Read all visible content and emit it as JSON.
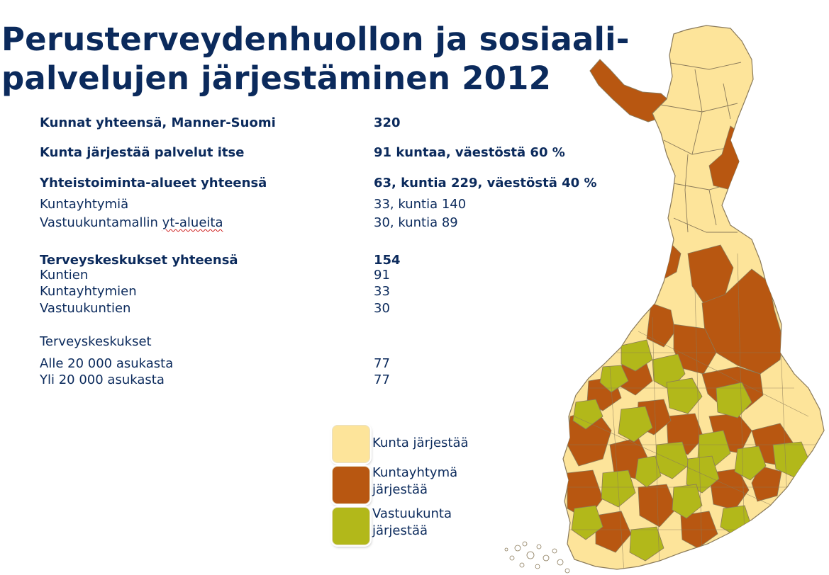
{
  "title": {
    "line1": "Perusterveydenhuollon ja sosiaali-",
    "line2": "palvelujen järjestäminen 2012"
  },
  "stats": [
    {
      "label": "Kunnat yhteensä, Manner-Suomi",
      "value": "320",
      "bold": true
    },
    {
      "label": "Kunta järjestää palvelut itse",
      "value": "91 kuntaa, väestöstä 60 %",
      "bold": true
    },
    {
      "label": "Yhteistoiminta-alueet yhteensä",
      "value": "63, kuntia 229, väestöstä 40 %",
      "bold": true
    },
    {
      "label": "Kuntayhtymiä",
      "value": "33, kuntia 140",
      "bold": false
    },
    {
      "label_pre": "Vastuukuntamallin ",
      "label_squiggle": "yt-alueita",
      "value": "30, kuntia 89",
      "bold": false
    },
    {
      "label": "Terveyskeskukset yhteensä",
      "value": "154",
      "bold": true
    },
    {
      "label": "Kuntien",
      "value": "91",
      "bold": false
    },
    {
      "label": "Kuntayhtymien",
      "value": "33",
      "bold": false
    },
    {
      "label": "Vastuukuntien",
      "value": "30",
      "bold": false
    },
    {
      "label": "Terveyskeskukset",
      "value": "",
      "bold": false
    },
    {
      "label": "Alle 20 000 asukasta",
      "value": "77",
      "bold": false
    },
    {
      "label": "Yli 20 000 asukasta",
      "value": "77",
      "bold": false
    }
  ],
  "legend": [
    {
      "line1": "Kunta järjestää",
      "line2": "",
      "color": "#fde49a"
    },
    {
      "line1": "Kuntayhtymä",
      "line2": "järjestää",
      "color": "#b85711"
    },
    {
      "line1": "Vastuukunta",
      "line2": "järjestää",
      "color": "#b2b81a"
    }
  ],
  "map": {
    "colors": {
      "kunta": "#fde49a",
      "kuntayhtyma": "#b85711",
      "vastuukunta": "#b2b81a",
      "border": "#8a7a5a"
    }
  }
}
